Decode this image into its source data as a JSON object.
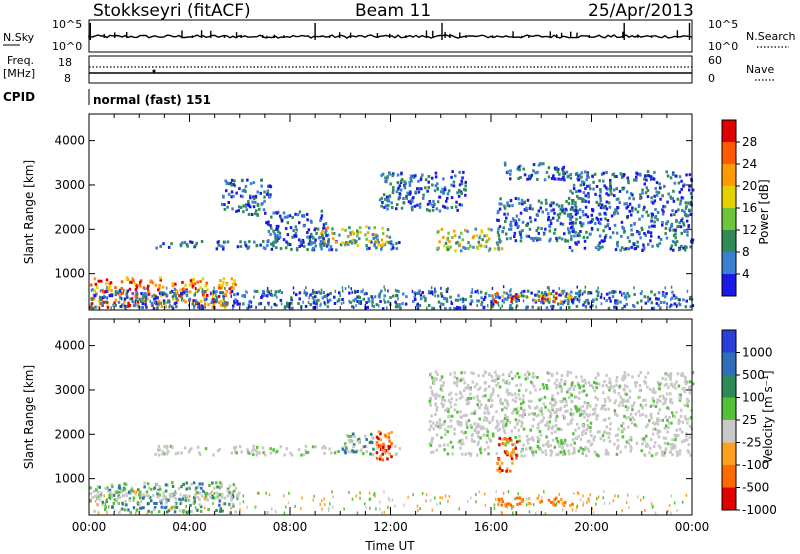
{
  "header": {
    "station": "Stokkseyri (fitACF)",
    "beam": "Beam 11",
    "date": "25/Apr/2013"
  },
  "labels": {
    "nsky": "N.Sky",
    "nsearch": "N.Search",
    "freq_line1": "Freq.",
    "freq_line2": "[MHz]",
    "nave": "Nave",
    "cpid": "CPID",
    "cpid_value": "normal (fast) 151"
  },
  "chart_data": [
    {
      "type": "line",
      "name": "noise-panel",
      "left_ticks": [
        "10^5",
        "10^0"
      ],
      "right_ticks": [
        "10^5",
        "10^0"
      ],
      "series": [
        {
          "name": "N.Sky",
          "style": "solid"
        },
        {
          "name": "N.Search",
          "style": "dotted"
        }
      ],
      "spikes_hours": [
        0.05,
        9.0,
        14.05,
        21.3,
        23.9
      ]
    },
    {
      "type": "line",
      "name": "frequency-panel",
      "left_ticks": [
        "18",
        "8"
      ],
      "right_ticks": [
        "60",
        "0"
      ],
      "series": [
        {
          "name": "Freq. [MHz]",
          "style": "solid",
          "value_approx": 10
        },
        {
          "name": "Nave",
          "style": "dotted",
          "value_approx": 20
        }
      ]
    },
    {
      "type": "heatmap",
      "name": "power",
      "xlabel": "",
      "ylabel": "Slant Range [km]",
      "xlim": [
        0,
        24
      ],
      "ylim": [
        180,
        4600
      ],
      "yticks": [
        1000,
        2000,
        3000,
        4000
      ],
      "colorbar": {
        "label": "Power [dB]",
        "ticks": [
          "28",
          "24",
          "20",
          "16",
          "12",
          "8",
          "4"
        ],
        "colors": [
          "#e00000",
          "#ff5a00",
          "#ff9a00",
          "#e6d000",
          "#6ec43a",
          "#2f8a58",
          "#3a7fd0",
          "#1a1ae6"
        ]
      },
      "regions": [
        {
          "t0": 0.0,
          "t1": 5.8,
          "r0": 220,
          "r1": 900,
          "level": "high"
        },
        {
          "t0": 0.0,
          "t1": 24.0,
          "r0": 200,
          "r1": 600,
          "level": "low"
        },
        {
          "t0": 2.6,
          "t1": 12.4,
          "r0": 1520,
          "r1": 1720,
          "level": "low"
        },
        {
          "t0": 9.2,
          "t1": 12.0,
          "r0": 1600,
          "r1": 2050,
          "level": "mid"
        },
        {
          "t0": 7.0,
          "t1": 9.5,
          "r0": 1600,
          "r1": 2400,
          "level": "low"
        },
        {
          "t0": 5.2,
          "t1": 7.2,
          "r0": 2300,
          "r1": 3100,
          "level": "low"
        },
        {
          "t0": 13.7,
          "t1": 16.4,
          "r0": 1500,
          "r1": 2000,
          "level": "mid"
        },
        {
          "t0": 16.0,
          "t1": 19.2,
          "r0": 350,
          "r1": 560,
          "level": "high"
        },
        {
          "t0": 16.2,
          "t1": 19.2,
          "r0": 1700,
          "r1": 2700,
          "level": "low"
        },
        {
          "t0": 16.5,
          "t1": 19.0,
          "r0": 3100,
          "r1": 3500,
          "level": "low"
        },
        {
          "t0": 19.0,
          "t1": 24.0,
          "r0": 1500,
          "r1": 3300,
          "level": "low"
        },
        {
          "t0": 11.5,
          "t1": 15.0,
          "r0": 2400,
          "r1": 3300,
          "level": "low"
        }
      ]
    },
    {
      "type": "heatmap",
      "name": "velocity",
      "xlabel": "Time UT",
      "ylabel": "Slant Range [km]",
      "xlim": [
        0,
        24
      ],
      "ylim": [
        180,
        4600
      ],
      "yticks": [
        1000,
        2000,
        3000,
        4000
      ],
      "xticks": [
        "00:00",
        "04:00",
        "08:00",
        "12:00",
        "16:00",
        "20:00",
        "00:00"
      ],
      "colorbar": {
        "label": "Velocity [m s⁻¹]",
        "ticks": [
          "1000",
          "500",
          "100",
          "25",
          "-25",
          "-100",
          "-500",
          "-1000"
        ],
        "colors": [
          "#2a3fd8",
          "#2f6fb8",
          "#2f8a58",
          "#55c03a",
          "#c8c8c8",
          "#ffa020",
          "#ff6a00",
          "#e00000"
        ]
      },
      "regions": [
        {
          "t0": 0.0,
          "t1": 5.8,
          "r0": 220,
          "r1": 900,
          "level": "pos"
        },
        {
          "t0": 0.0,
          "t1": 6.0,
          "r0": 500,
          "r1": 700,
          "level": "zero"
        },
        {
          "t0": 2.6,
          "t1": 12.4,
          "r0": 1520,
          "r1": 1720,
          "level": "zero"
        },
        {
          "t0": 10.0,
          "t1": 11.3,
          "r0": 1500,
          "r1": 2000,
          "level": "pos"
        },
        {
          "t0": 11.4,
          "t1": 12.0,
          "r0": 1400,
          "r1": 2100,
          "level": "neg"
        },
        {
          "t0": 16.2,
          "t1": 19.2,
          "r0": 350,
          "r1": 560,
          "level": "negmild"
        },
        {
          "t0": 13.5,
          "t1": 24.0,
          "r0": 1500,
          "r1": 3400,
          "level": "zero"
        },
        {
          "t0": 16.2,
          "t1": 17.0,
          "r0": 1100,
          "r1": 1900,
          "level": "neg"
        }
      ]
    }
  ]
}
